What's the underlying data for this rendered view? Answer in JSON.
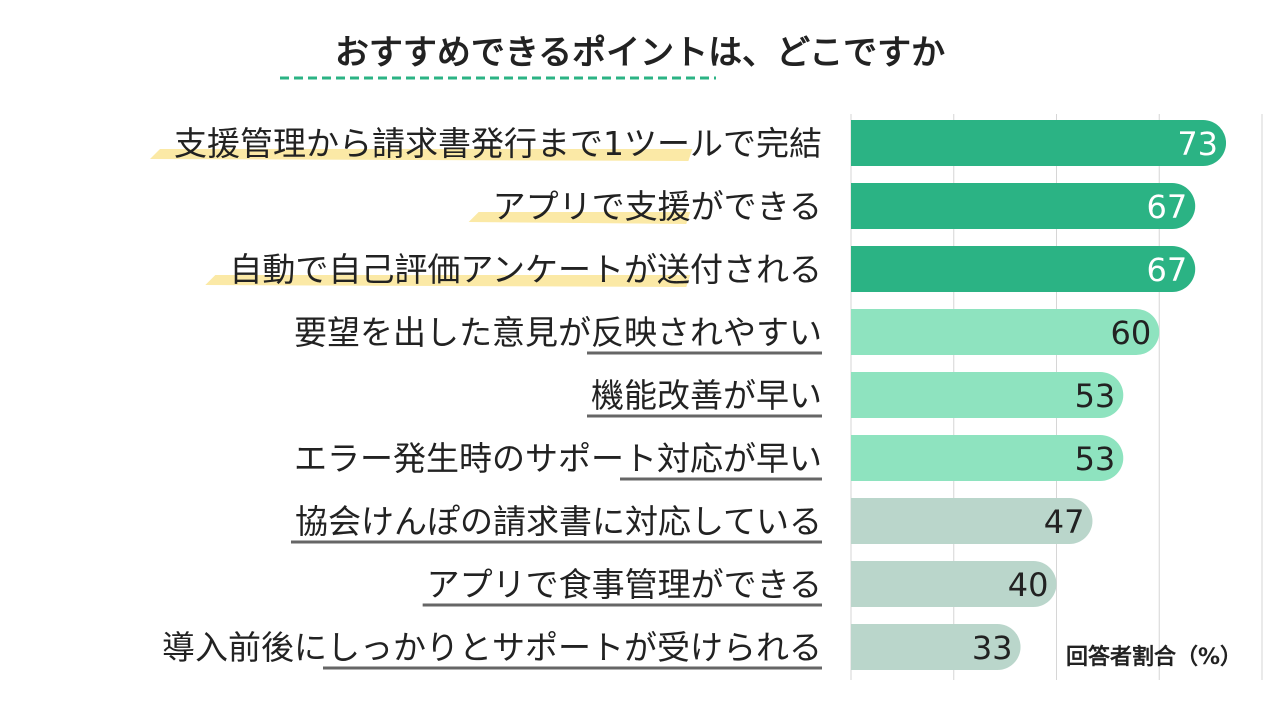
{
  "chart_data": {
    "type": "bar",
    "orientation": "horizontal",
    "title": "おすすめできるポイントは、どこですか",
    "unit_label": "回答者割合（%）",
    "categories": [
      "支援管理から請求書発行まで1ツールで完結",
      "アプリで支援ができる",
      "自動で自己評価アンケートが送付される",
      "要望を出した意見が反映されやすい",
      "機能改善が早い",
      "エラー発生時のサポート対応が早い",
      "協会けんぽの請求書に対応している",
      "アプリで食事管理ができる",
      "導入前後にしっかりとサポートが受けられる"
    ],
    "values": [
      73,
      67,
      67,
      60,
      53,
      53,
      47,
      40,
      33
    ],
    "xlim": [
      0,
      80
    ],
    "grid": true,
    "colors": {
      "tier_high": "#2bb384",
      "tier_mid": "#8ee3bf",
      "tier_low": "#bad6cb",
      "highlight_yellow": "#fbe9a6",
      "highlight_gray": "#666666",
      "title_dash": "#2bb384",
      "grid": "#d6d6d6"
    }
  }
}
